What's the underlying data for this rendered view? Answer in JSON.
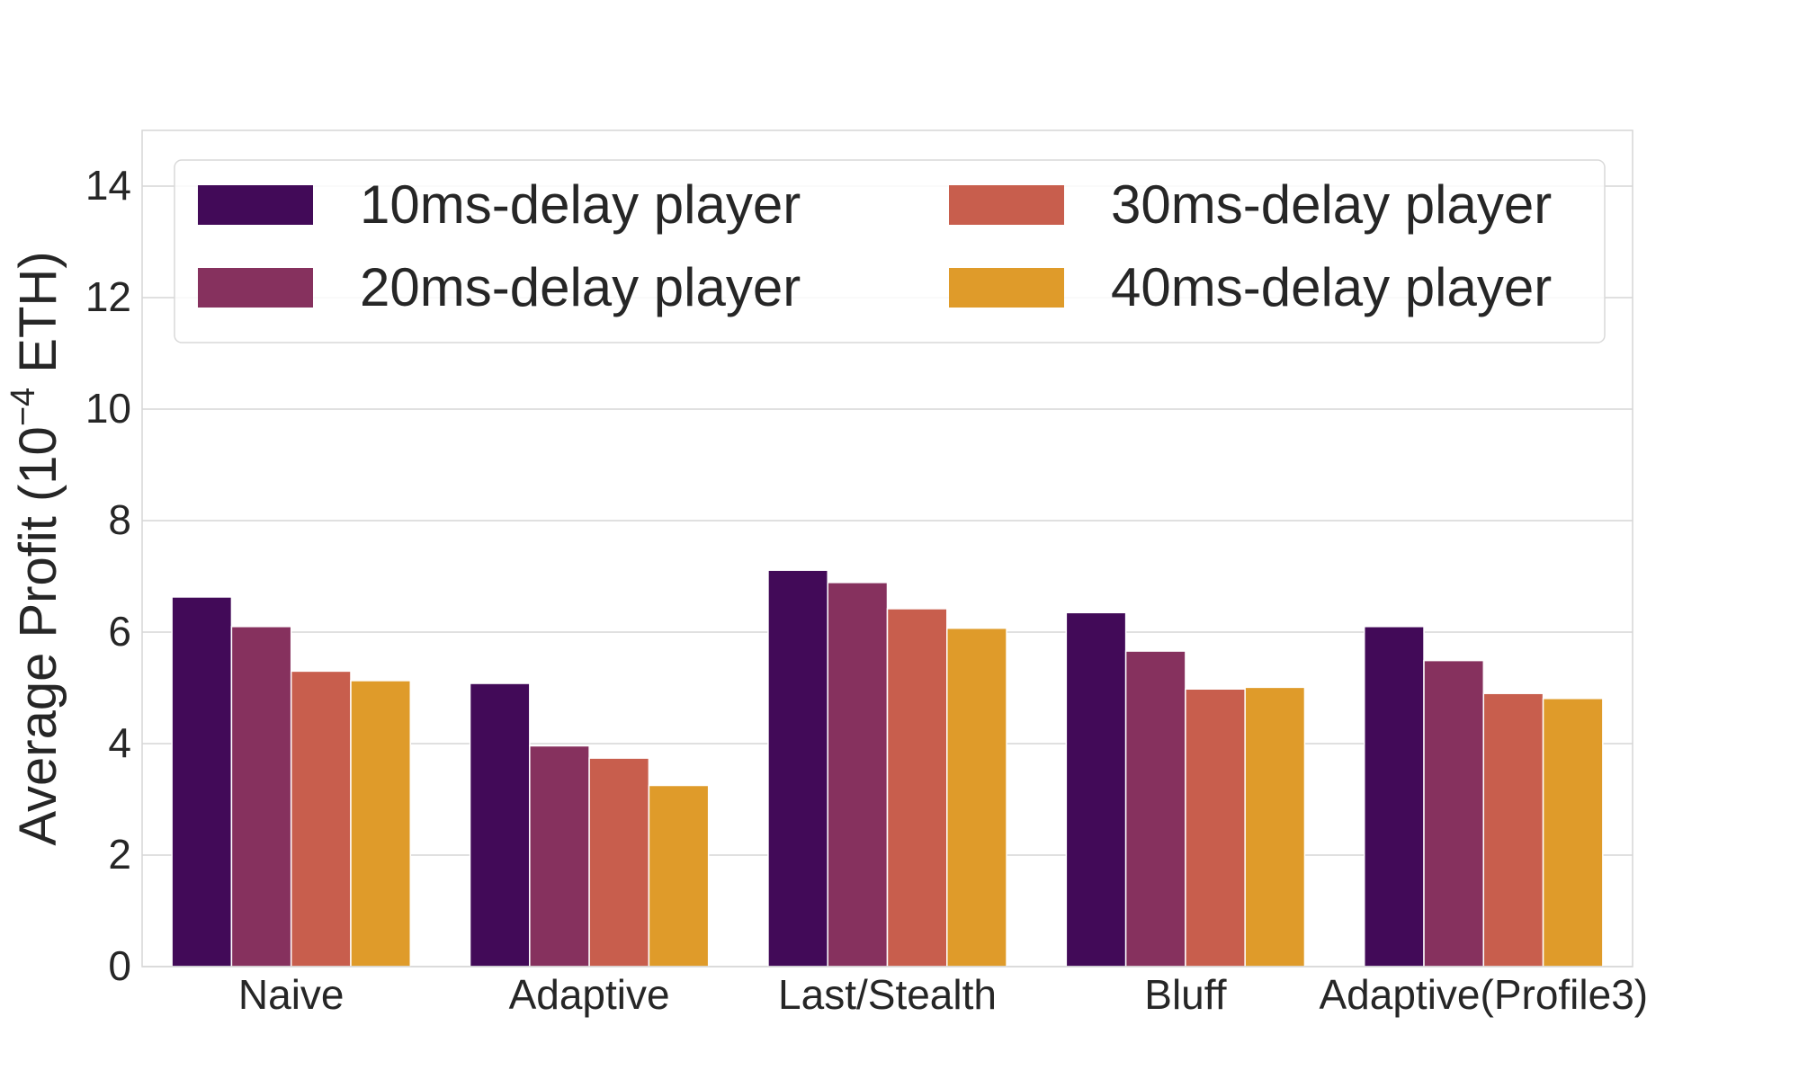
{
  "chart_data": {
    "type": "bar",
    "categories": [
      "Naive",
      "Adaptive",
      "Last/Stealth",
      "Bluff",
      "Adaptive(Profile3)"
    ],
    "series": [
      {
        "name": "10ms-delay player",
        "color": "#420a58",
        "values": [
          6.63,
          5.08,
          7.11,
          6.35,
          6.1
        ]
      },
      {
        "name": "20ms-delay player",
        "color": "#86315e",
        "values": [
          6.1,
          3.96,
          6.89,
          5.66,
          5.49
        ]
      },
      {
        "name": "30ms-delay player",
        "color": "#c85e4d",
        "values": [
          5.3,
          3.74,
          6.42,
          4.98,
          4.9
        ]
      },
      {
        "name": "40ms-delay player",
        "color": "#df9b2a",
        "values": [
          5.13,
          3.25,
          6.07,
          5.01,
          4.81
        ]
      }
    ],
    "ylabel": "Average Profit (10",
    "ylabel_exponent": "−4",
    "ylabel_suffix": " ETH)",
    "ylim": [
      0,
      15
    ],
    "yticks": [
      0,
      2,
      4,
      6,
      8,
      10,
      12,
      14
    ],
    "grid": true,
    "legend": {
      "placement": "top",
      "columns": 2
    }
  }
}
